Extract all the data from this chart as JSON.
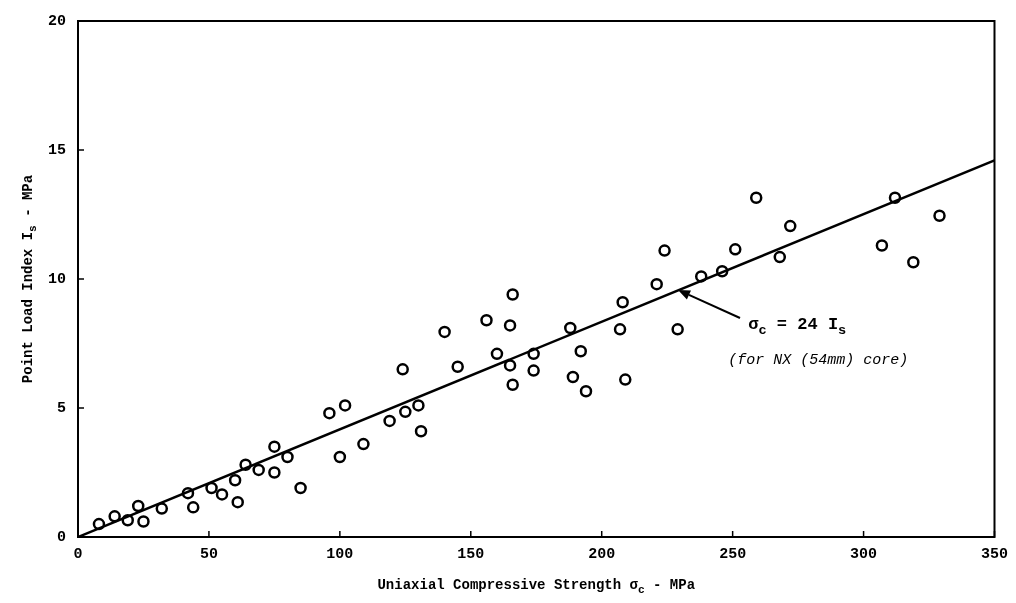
{
  "chart_data": {
    "type": "scatter",
    "xlabel": "Uniaxial Compressive Strength σ$_{c}$ - MPa",
    "ylabel": "Point Load Index I$_{s}$ - MPa",
    "xlim": [
      0,
      350
    ],
    "xticks": [
      0,
      50,
      100,
      150,
      200,
      250,
      300,
      350
    ],
    "ylim": [
      0,
      20
    ],
    "yticks": [
      0,
      5,
      10,
      15,
      20
    ],
    "grid": false,
    "legend": false,
    "marker": "circle",
    "series": [
      {
        "type": "scatter",
        "color": "#000000",
        "x": [
          8,
          14,
          19,
          23,
          25,
          32,
          42,
          44,
          51,
          55,
          60,
          61,
          64,
          69,
          75,
          75,
          80,
          85,
          96,
          100,
          102,
          109,
          119,
          124,
          125,
          130,
          131,
          140,
          145,
          156,
          160,
          165,
          165,
          166,
          166,
          174,
          174,
          188,
          189,
          192,
          194,
          207,
          208,
          209,
          221,
          224,
          229,
          238,
          246,
          251,
          259,
          268,
          272,
          307,
          312,
          319,
          329
        ],
        "values": [
          0.5,
          0.8,
          0.65,
          1.2,
          0.6,
          1.1,
          1.7,
          1.15,
          1.9,
          1.65,
          2.2,
          1.35,
          2.8,
          2.6,
          3.5,
          2.5,
          3.1,
          1.9,
          4.8,
          3.1,
          5.1,
          3.6,
          4.5,
          6.5,
          4.85,
          5.1,
          4.1,
          7.95,
          6.6,
          8.4,
          7.1,
          8.2,
          6.65,
          9.4,
          5.9,
          7.1,
          6.45,
          8.1,
          6.2,
          7.2,
          5.65,
          8.05,
          9.1,
          6.1,
          9.8,
          11.1,
          8.05,
          10.1,
          10.3,
          11.15,
          13.15,
          10.85,
          12.05,
          11.3,
          13.15,
          10.65,
          12.45
        ]
      },
      {
        "type": "line",
        "color": "#000000",
        "marker": "none",
        "line_style": "solid",
        "x": [
          0,
          350
        ],
        "values": [
          0,
          14.6
        ]
      }
    ],
    "annotations": [
      "σ$_{c}$ = 24 I$_{s}$",
      "(for NX (54mm) core)"
    ]
  }
}
